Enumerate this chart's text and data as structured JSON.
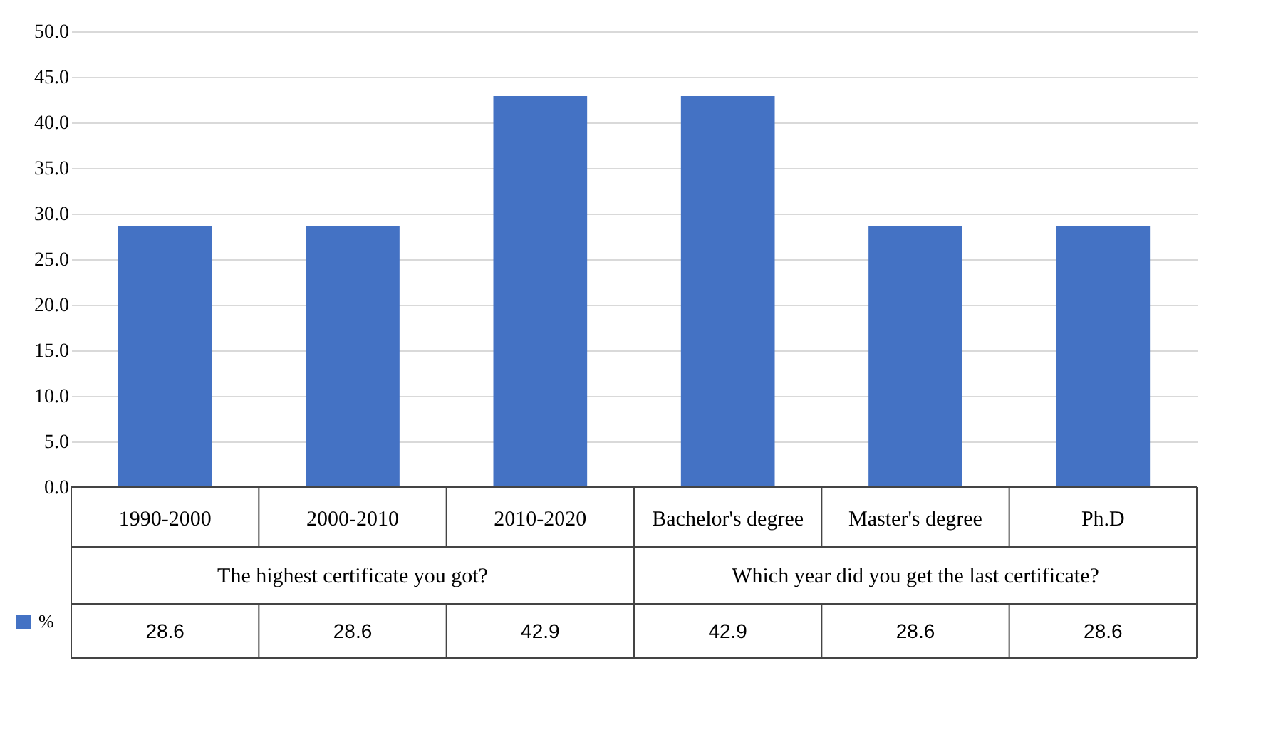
{
  "chart_data": {
    "type": "bar",
    "categories": [
      "1990-2000",
      "2000-2010",
      "2010-2020",
      "Bachelor's degree",
      "Master's degree",
      "Ph.D"
    ],
    "series": [
      {
        "name": "%",
        "color": "#4472c4",
        "values": [
          28.6,
          28.6,
          42.9,
          42.9,
          28.6,
          28.6
        ]
      }
    ],
    "ylim": [
      0,
      50
    ],
    "yticks": [
      {
        "value": 0,
        "label": "0.0"
      },
      {
        "value": 5,
        "label": "5.0"
      },
      {
        "value": 10,
        "label": "10.0"
      },
      {
        "value": 15,
        "label": "15.0"
      },
      {
        "value": 20,
        "label": "20.0"
      },
      {
        "value": 25,
        "label": "25.0"
      },
      {
        "value": 30,
        "label": "30.0"
      },
      {
        "value": 35,
        "label": "35.0"
      },
      {
        "value": 40,
        "label": "40.0"
      },
      {
        "value": 45,
        "label": "45.0"
      },
      {
        "value": 50,
        "label": "50.0"
      }
    ],
    "grid": "y",
    "data_labels": true,
    "legend": "bottom left",
    "annotations": [
      "The highest certificate you got?",
      "Which year did you get the last certificate?"
    ]
  }
}
